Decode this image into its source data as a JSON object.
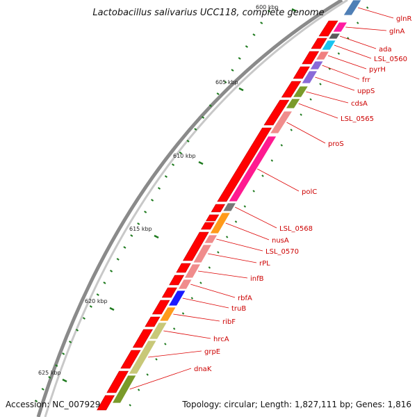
{
  "title": "Lactobacillus salivarius UCC118, complete genome",
  "footer": {
    "accession": "Accession: NC_007929",
    "topology": "Topology: circular; Length: 1,827,111 bp; Genes: 1,816"
  },
  "kbp_labels": [
    {
      "text": "600 kbp"
    },
    {
      "text": "605 kbp"
    },
    {
      "text": "610 kbp"
    },
    {
      "text": "615 kbp"
    },
    {
      "text": "620 kbp"
    },
    {
      "text": "625 kbp"
    }
  ],
  "genes": [
    {
      "name": "glnR",
      "color": "#4f7fb6"
    },
    {
      "name": "glnA",
      "color": "#ff1aa0"
    },
    {
      "name": "ada",
      "color": "#5a5a5a"
    },
    {
      "name": "LSL_0560",
      "color": "#19c3f0"
    },
    {
      "name": "pyrH",
      "color": "#f08080"
    },
    {
      "name": "frr",
      "color": "#8a6ad8"
    },
    {
      "name": "uppS",
      "color": "#8a6ad8"
    },
    {
      "name": "cdsA",
      "color": "#7a9a2a"
    },
    {
      "name": "LSL_0565",
      "color": "#7a9a2a"
    },
    {
      "name": "proS",
      "color": "#f08c8c"
    },
    {
      "name": "polC",
      "color": "#ff1a90"
    },
    {
      "name": "LSL_0568",
      "color": "#777777"
    },
    {
      "name": "nusA",
      "color": "#ff9a1a"
    },
    {
      "name": "LSL_0570",
      "color": "#f08c8c"
    },
    {
      "name": "rPL",
      "color": "#f08c8c"
    },
    {
      "name": "infB",
      "color": "#f08c8c"
    },
    {
      "name": "rbfA",
      "color": "#f08c8c"
    },
    {
      "name": "truB",
      "color": "#1a1aff"
    },
    {
      "name": "ribF",
      "color": "#ff9a1a"
    },
    {
      "name": "hrcA",
      "color": "#c8c878"
    },
    {
      "name": "grpE",
      "color": "#c8c878"
    },
    {
      "name": "dnaK",
      "color": "#7a9a2a"
    }
  ]
}
